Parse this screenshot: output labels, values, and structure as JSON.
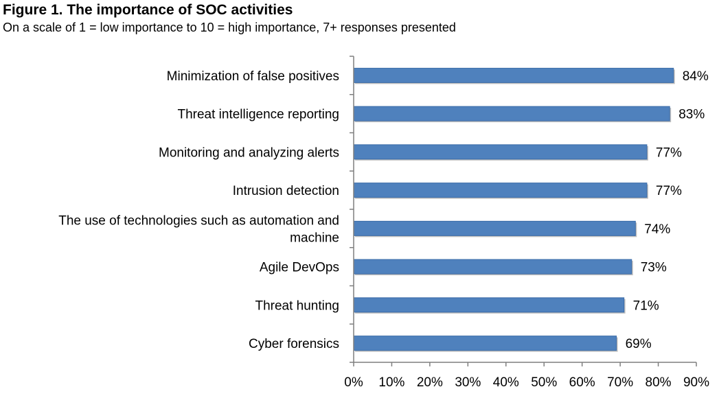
{
  "figure": {
    "title": "Figure 1. The importance of SOC activities",
    "subtitle": "On a scale of 1 = low importance to 10 = high importance, 7+ responses presented"
  },
  "chart_data": {
    "type": "bar",
    "orientation": "horizontal",
    "title": "Figure 1. The importance of SOC activities",
    "subtitle": "On a scale of 1 = low importance to 10 = high importance, 7+ responses presented",
    "categories": [
      [
        "Minimization of false positives"
      ],
      [
        "Threat intelligence reporting"
      ],
      [
        "Monitoring and analyzing alerts"
      ],
      [
        "Intrusion detection"
      ],
      [
        "The use of technologies such as automation and",
        "machine"
      ],
      [
        "Agile DevOps"
      ],
      [
        "Threat hunting"
      ],
      [
        "Cyber forensics"
      ]
    ],
    "values": [
      84,
      83,
      77,
      77,
      74,
      73,
      71,
      69
    ],
    "value_labels": [
      "84%",
      "83%",
      "77%",
      "77%",
      "74%",
      "73%",
      "71%",
      "69%"
    ],
    "xlim": [
      0,
      90
    ],
    "xticks": [
      0,
      10,
      20,
      30,
      40,
      50,
      60,
      70,
      80,
      90
    ],
    "xtick_labels": [
      "0%",
      "10%",
      "20%",
      "30%",
      "40%",
      "50%",
      "60%",
      "70%",
      "80%",
      "90%"
    ],
    "xlabel": "",
    "ylabel": "",
    "grid": false,
    "legend": "none",
    "colors": {
      "bar": "#4f81bd",
      "bar_edge": "#3a6ba8",
      "axis": "#7f7f7f"
    }
  }
}
